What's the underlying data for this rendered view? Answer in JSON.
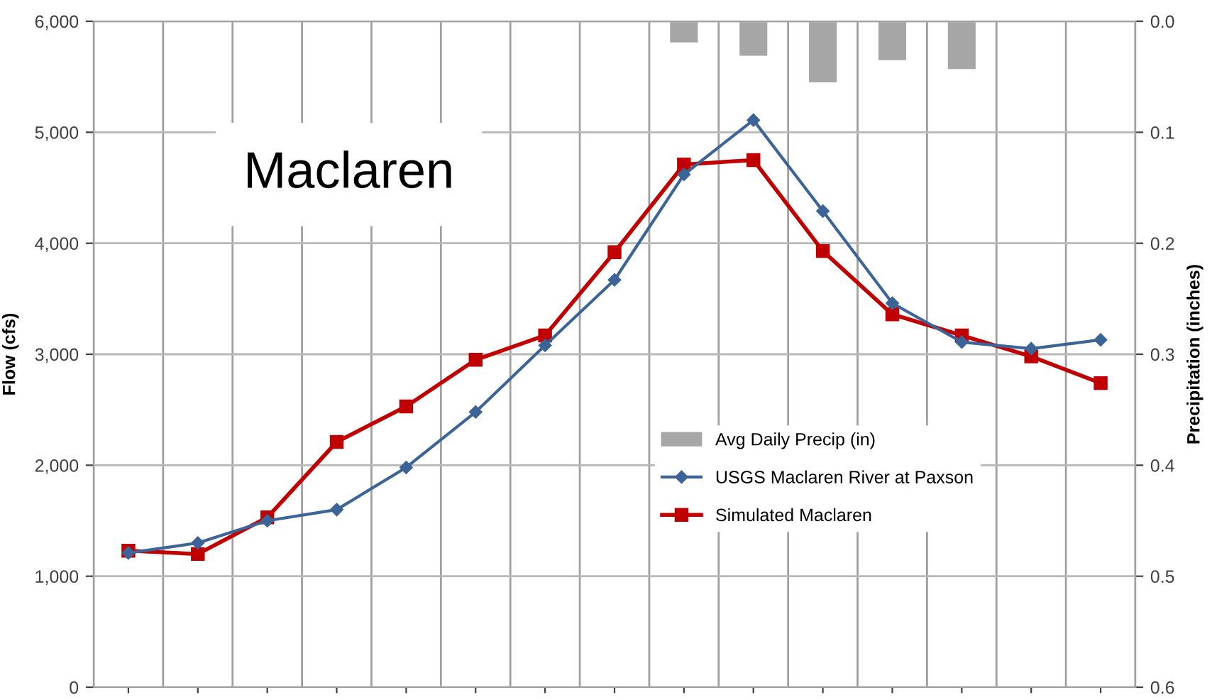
{
  "chart_data": {
    "type": "line",
    "title": "Maclaren",
    "ylabel": "Flow (cfs)",
    "y2label": "Precipitation (inches)",
    "categories": [
      null,
      null,
      null,
      null,
      null,
      null,
      null,
      null,
      null,
      null,
      null,
      null,
      null,
      null,
      null
    ],
    "series": [
      {
        "name": "Avg Daily Precip (in)",
        "type": "bar",
        "axis": "y2",
        "color": "#a6a6a6",
        "values": [
          null,
          null,
          null,
          null,
          null,
          null,
          null,
          null,
          0.019,
          0.031,
          0.055,
          0.035,
          0.043,
          null,
          null
        ]
      },
      {
        "name": "USGS Maclaren River at Paxson",
        "color": "#3c6496",
        "marker": "diamond",
        "values": [
          1210,
          1300,
          1500,
          1600,
          1980,
          2480,
          3080,
          3670,
          4620,
          5110,
          4290,
          3460,
          3110,
          3050,
          3130
        ]
      },
      {
        "name": "Simulated Maclaren",
        "color": "#c00000",
        "marker": "square",
        "values": [
          1230,
          1200,
          1530,
          2210,
          2530,
          2950,
          3170,
          3920,
          4710,
          4750,
          3930,
          3360,
          3170,
          2980,
          2740
        ]
      }
    ],
    "ylim": [
      0,
      6000
    ],
    "yticks": [
      {
        "value": 0,
        "label": "0"
      },
      {
        "value": 1000,
        "label": "1,000"
      },
      {
        "value": 2000,
        "label": "2,000"
      },
      {
        "value": 3000,
        "label": "3,000"
      },
      {
        "value": 4000,
        "label": "4,000"
      },
      {
        "value": 5000,
        "label": "5,000"
      },
      {
        "value": 6000,
        "label": "6,000"
      }
    ],
    "y2lim": [
      0.6,
      0.0
    ],
    "y2ticks": [
      {
        "value": 0.0,
        "label": "0.0"
      },
      {
        "value": 0.1,
        "label": "0.1"
      },
      {
        "value": 0.2,
        "label": "0.2"
      },
      {
        "value": 0.3,
        "label": "0.3"
      },
      {
        "value": 0.4,
        "label": "0.4"
      },
      {
        "value": 0.5,
        "label": "0.5"
      },
      {
        "value": 0.6,
        "label": "0.6"
      }
    ],
    "grid": true,
    "legend": "lower right",
    "tick_labels": "y"
  }
}
